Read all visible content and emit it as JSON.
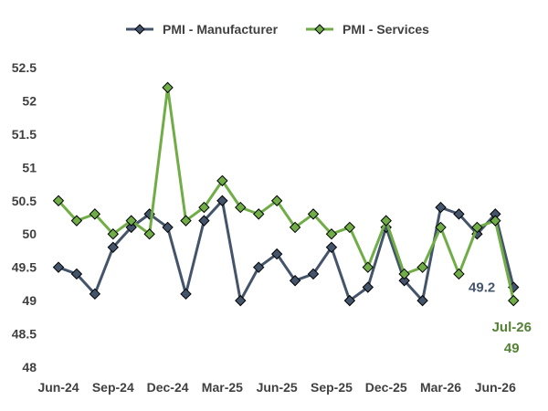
{
  "chart_data": {
    "type": "line",
    "x": [
      "Jun-24",
      "Jul-24",
      "Aug-24",
      "Sep-24",
      "Oct-24",
      "Nov-24",
      "Dec-24",
      "Jan-25",
      "Feb-25",
      "Mar-25",
      "Apr-25",
      "May-25",
      "Jun-25",
      "Jul-25",
      "Aug-25",
      "Sep-25",
      "Oct-25",
      "Nov-25",
      "Dec-25",
      "Jan-26",
      "Feb-26",
      "Mar-26",
      "Apr-26",
      "May-26",
      "Jun-26",
      "Jul-26"
    ],
    "x_tick_labels": [
      "Jun-24",
      "Sep-24",
      "Dec-24",
      "Mar-25",
      "Jun-25",
      "Sep-25",
      "Dec-25",
      "Mar-26",
      "Jun-26"
    ],
    "y_tick_labels": [
      "48",
      "48.5",
      "49",
      "49.5",
      "50",
      "50.5",
      "51",
      "51.5",
      "52",
      "52.5"
    ],
    "ylim": [
      48,
      52.5
    ],
    "series": [
      {
        "name": "PMI - Manufacturer",
        "color": "#44546a",
        "values": [
          49.5,
          49.4,
          49.1,
          49.8,
          50.1,
          50.3,
          50.1,
          49.1,
          50.2,
          50.5,
          49.0,
          49.5,
          49.7,
          49.3,
          49.4,
          49.8,
          49.0,
          49.2,
          50.1,
          49.3,
          49.0,
          50.4,
          50.3,
          50.0,
          50.3,
          49.2
        ]
      },
      {
        "name": "PMI - Services",
        "color": "#70ad47",
        "values": [
          50.5,
          50.2,
          50.3,
          50.0,
          50.2,
          50.0,
          52.2,
          50.2,
          50.4,
          50.8,
          50.4,
          50.3,
          50.5,
          50.1,
          50.3,
          50.0,
          50.1,
          49.5,
          50.2,
          49.4,
          49.5,
          50.1,
          49.4,
          50.1,
          50.2,
          49.0
        ]
      }
    ],
    "legend_position": "top-center",
    "grid": false,
    "annotations": [
      {
        "text": "49.2",
        "series": "PMI - Manufacturer",
        "color": "#44546a"
      },
      {
        "text": "Jul-26",
        "series": "PMI - Services",
        "color": "#548235"
      },
      {
        "text": "49",
        "series": "PMI - Services",
        "color": "#548235"
      }
    ]
  }
}
